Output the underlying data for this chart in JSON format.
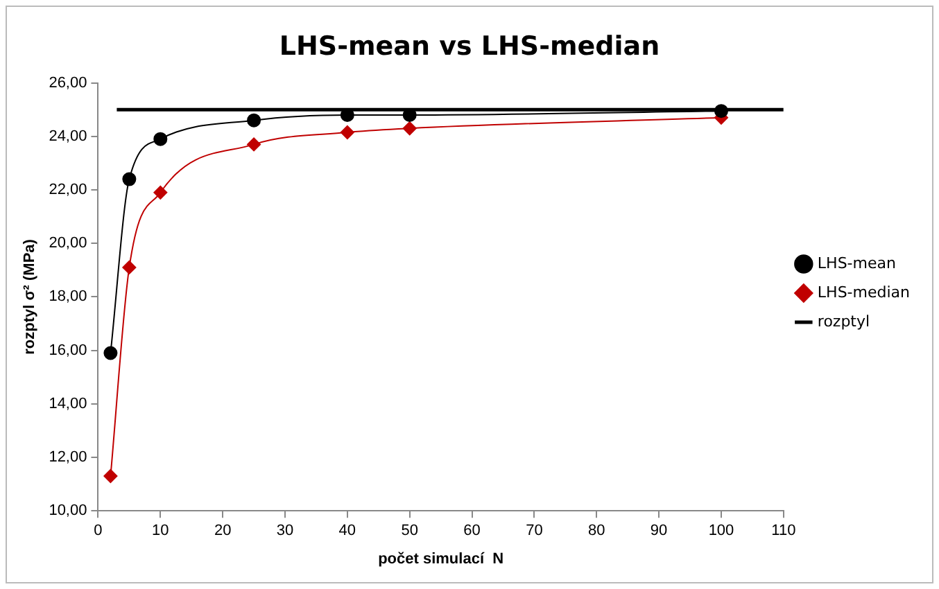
{
  "chart_data": {
    "type": "line",
    "title": "LHS-mean vs LHS-median",
    "xlabel": "počet simulací  N",
    "ylabel": "rozptyl σ² (MPa)",
    "x": [
      2,
      5,
      10,
      25,
      40,
      50,
      100
    ],
    "series": [
      {
        "name": "LHS-mean",
        "color": "#000000",
        "marker": "circle",
        "values": [
          15.9,
          22.4,
          23.9,
          24.6,
          24.8,
          24.8,
          24.95
        ]
      },
      {
        "name": "LHS-median",
        "color": "#c00000",
        "marker": "diamond",
        "values": [
          11.3,
          19.1,
          21.9,
          23.7,
          24.15,
          24.3,
          24.7
        ]
      },
      {
        "name": "rozptyl",
        "color": "#000000",
        "marker": "none",
        "x": [
          3,
          110
        ],
        "values": [
          25,
          25
        ]
      }
    ],
    "xlim": [
      0,
      110
    ],
    "xticks": [
      0,
      10,
      20,
      30,
      40,
      50,
      60,
      70,
      80,
      90,
      100,
      110
    ],
    "ylim": [
      10,
      26
    ],
    "yticks": [
      {
        "value": 10,
        "label": "10,00"
      },
      {
        "value": 12,
        "label": "12,00"
      },
      {
        "value": 14,
        "label": "14,00"
      },
      {
        "value": 16,
        "label": "16,00"
      },
      {
        "value": 18,
        "label": "18,00"
      },
      {
        "value": 20,
        "label": "20,00"
      },
      {
        "value": 22,
        "label": "22,00"
      },
      {
        "value": 24,
        "label": "24,00"
      },
      {
        "value": 26,
        "label": "26,00"
      }
    ],
    "grid": false,
    "legend": "right"
  }
}
